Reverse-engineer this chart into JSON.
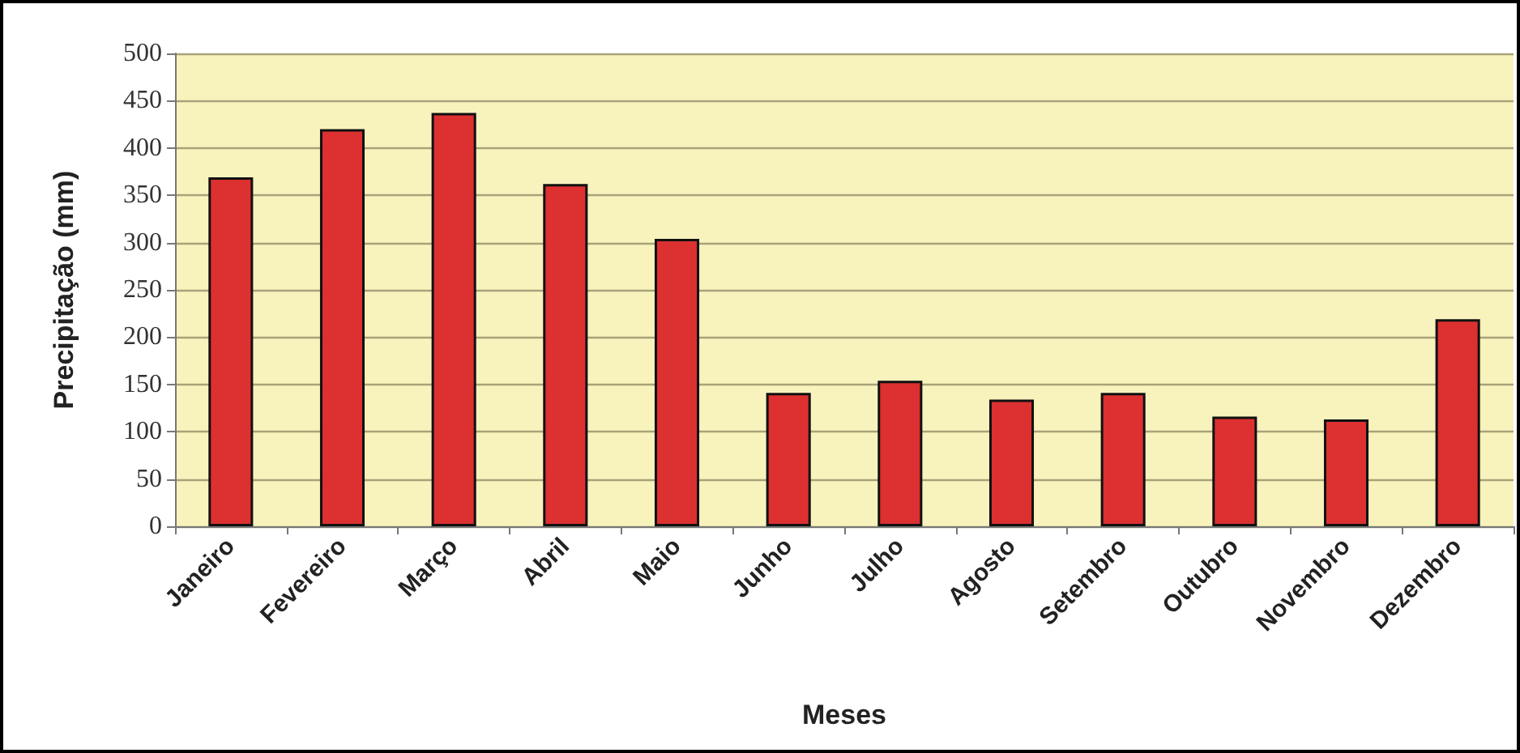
{
  "chart_data": {
    "type": "bar",
    "xlabel": "Meses",
    "ylabel": "Precipitação (mm)",
    "categories": [
      "Janeiro",
      "Fevereiro",
      "Março",
      "Abril",
      "Maio",
      "Junho",
      "Julho",
      "Agosto",
      "Setembro",
      "Outubro",
      "Novembro",
      "Dezembro"
    ],
    "values": [
      369,
      420,
      437,
      362,
      304,
      141,
      154,
      134,
      141,
      116,
      113,
      219
    ],
    "color": "#dd3030",
    "ylim": [
      0,
      500
    ],
    "yticks": [
      0,
      50,
      100,
      150,
      200,
      250,
      300,
      350,
      400,
      450,
      500
    ],
    "grid": "y"
  }
}
